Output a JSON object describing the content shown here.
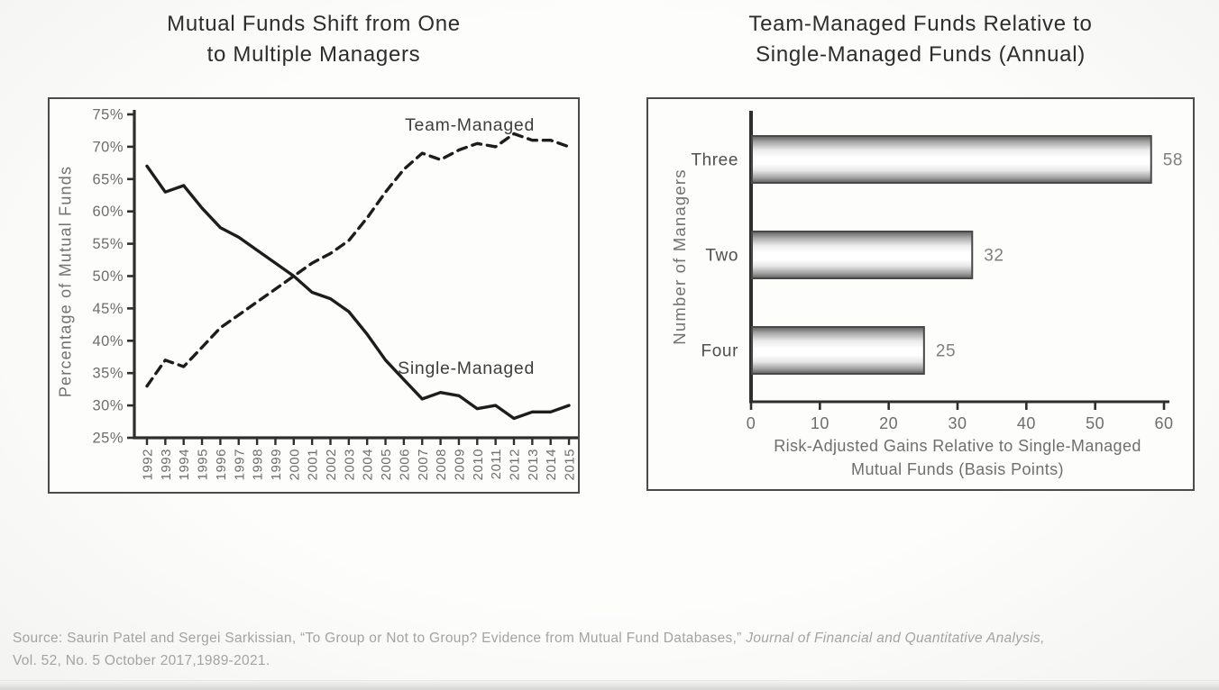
{
  "chart_data": [
    {
      "id": "managers-shift-line",
      "type": "line",
      "title": "Mutual Funds Shift from One\nto Multiple Managers",
      "ylabel": "Percentage of Mutual Funds",
      "ylim": [
        25,
        75
      ],
      "ytick_step": 5,
      "ytick_suffix": "%",
      "grid": false,
      "legend_position": "inline-labels",
      "x": [
        1992,
        1993,
        1994,
        1995,
        1996,
        1997,
        1998,
        1999,
        2000,
        2001,
        2002,
        2003,
        2004,
        2005,
        2006,
        2007,
        2008,
        2009,
        2010,
        2011,
        2012,
        2013,
        2014,
        2015
      ],
      "series": [
        {
          "name": "Team-Managed",
          "dash": true,
          "values": [
            33,
            37,
            36,
            39,
            42,
            44,
            46,
            48,
            50,
            52,
            53.5,
            55.5,
            59,
            63,
            66.5,
            69,
            68,
            69.5,
            70.5,
            70,
            72,
            71,
            71,
            70
          ]
        },
        {
          "name": "Single-Managed",
          "dash": false,
          "values": [
            67,
            63,
            64,
            60.5,
            57.5,
            56,
            54,
            52,
            50,
            47.5,
            46.5,
            44.5,
            41,
            37,
            34,
            31,
            32,
            31.5,
            29.5,
            30,
            28,
            29,
            29,
            30
          ]
        }
      ]
    },
    {
      "id": "gains-bar",
      "type": "bar",
      "orientation": "horizontal",
      "title": "Team-Managed Funds Relative to\nSingle-Managed Funds (Annual)",
      "ylabel": "Number of Managers",
      "xlabel": "Risk-Adjusted Gains Relative to Single-Managed\nMutual Funds (Basis Points)",
      "categories": [
        "Three",
        "Two",
        "Four"
      ],
      "values": [
        58,
        32,
        25
      ],
      "xlim": [
        0,
        60
      ],
      "xticks": [
        0,
        10,
        20,
        30,
        40,
        50,
        60
      ],
      "grid": false
    }
  ],
  "source": {
    "lead": "Source: Saurin Patel and Sergei Sarkissian, “To Group or Not to Group? Evidence from Mutual Fund Databases,” ",
    "journal": "Journal of Financial and Quantitative Analysis,",
    "line2": "Vol. 52, No. 5  October 2017,1989-2021."
  },
  "colors": {
    "line": "#1d1d1d",
    "axis": "#2e2e2e",
    "box_border": "#4b4b4b",
    "bar_border": "#484848",
    "bar_fill_edge": "#5f5f5f",
    "bar_fill_center": "#ffffff",
    "tick_text": "#6e6e6e",
    "title_text": "#2d2d2d",
    "source_text": "#a3a3a3"
  }
}
